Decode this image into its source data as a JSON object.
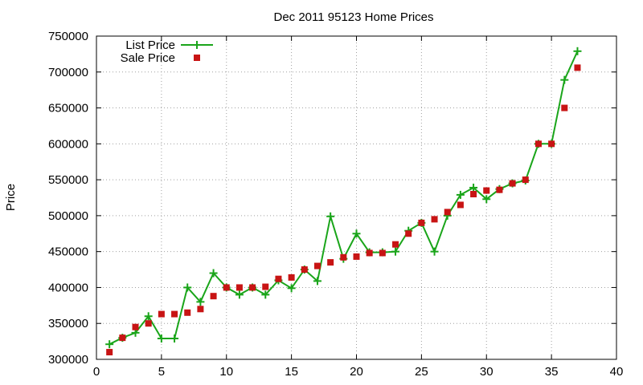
{
  "chart_data": {
    "type": "line",
    "title": "Dec 2011 95123 Home Prices",
    "xlabel": "",
    "ylabel": "Price",
    "xlim": [
      0,
      40
    ],
    "ylim": [
      300000,
      750000
    ],
    "x_ticks": [
      "0",
      "5",
      "10",
      "15",
      "20",
      "25",
      "30",
      "35",
      "40"
    ],
    "y_ticks": [
      "300000",
      "350000",
      "400000",
      "450000",
      "500000",
      "550000",
      "600000",
      "650000",
      "700000",
      "750000"
    ],
    "grid": true,
    "legend_position": "top-left",
    "series": [
      {
        "name": "List Price",
        "style": "linespoints",
        "marker": "plus",
        "color": "#1aa51a",
        "x": [
          1,
          2,
          3,
          4,
          5,
          6,
          7,
          8,
          9,
          10,
          11,
          12,
          13,
          14,
          15,
          16,
          17,
          18,
          19,
          20,
          21,
          22,
          23,
          24,
          25,
          26,
          27,
          28,
          29,
          30,
          31,
          32,
          33,
          34,
          35,
          36,
          37
        ],
        "y": [
          321000,
          330000,
          337000,
          360000,
          329000,
          329000,
          400000,
          380000,
          420000,
          400000,
          390000,
          400000,
          390000,
          410000,
          399000,
          425000,
          409000,
          499000,
          440000,
          475000,
          449000,
          449000,
          450000,
          479000,
          490000,
          450000,
          500000,
          529000,
          539000,
          523000,
          537000,
          545000,
          549000,
          600000,
          600000,
          689000,
          729000
        ]
      },
      {
        "name": "Sale Price",
        "style": "points",
        "marker": "square",
        "color": "#c81414",
        "x": [
          1,
          2,
          3,
          4,
          5,
          6,
          7,
          8,
          9,
          10,
          11,
          12,
          13,
          14,
          15,
          16,
          17,
          18,
          19,
          20,
          21,
          22,
          23,
          24,
          25,
          26,
          27,
          28,
          29,
          30,
          31,
          32,
          33,
          34,
          35,
          36,
          37
        ],
        "y": [
          310000,
          330000,
          345000,
          350000,
          363000,
          363000,
          365000,
          370000,
          388000,
          400000,
          400000,
          400000,
          401000,
          412000,
          414000,
          425000,
          430000,
          435000,
          442000,
          443000,
          448000,
          448000,
          460000,
          475000,
          490000,
          495000,
          505000,
          515000,
          530000,
          535000,
          536000,
          545000,
          550000,
          600000,
          600000,
          650000,
          706000
        ]
      }
    ]
  }
}
